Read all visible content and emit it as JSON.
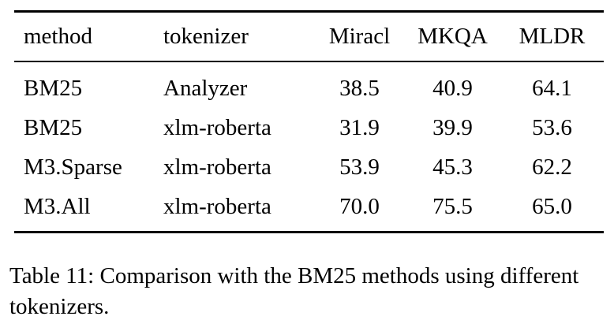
{
  "table": {
    "columns": [
      "method",
      "tokenizer",
      "Miracl",
      "MKQA",
      "MLDR"
    ],
    "rows": [
      [
        "BM25",
        "Analyzer",
        "38.5",
        "40.9",
        "64.1"
      ],
      [
        "BM25",
        "xlm-roberta",
        "31.9",
        "39.9",
        "53.6"
      ],
      [
        "M3.Sparse",
        "xlm-roberta",
        "53.9",
        "45.3",
        "62.2"
      ],
      [
        "M3.All",
        "xlm-roberta",
        "70.0",
        "75.5",
        "65.0"
      ]
    ]
  },
  "caption": "Table 11: Comparison with the BM25 methods using different tokenizers.",
  "colors": {
    "text": "#000000",
    "background": "#ffffff",
    "rule": "#000000"
  }
}
